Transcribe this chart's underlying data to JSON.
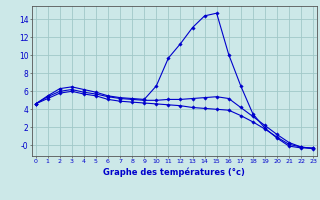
{
  "xlabel": "Graphe des températures (°c)",
  "background_color": "#cce8e8",
  "grid_color": "#a0c8c8",
  "line_color": "#0000cc",
  "x_ticks": [
    0,
    1,
    2,
    3,
    4,
    5,
    6,
    7,
    8,
    9,
    10,
    11,
    12,
    13,
    14,
    15,
    16,
    17,
    18,
    19,
    20,
    21,
    22,
    23
  ],
  "ylim": [
    -1.2,
    15.5
  ],
  "xlim": [
    -0.3,
    23.3
  ],
  "yticks": [
    0,
    2,
    4,
    6,
    8,
    10,
    12,
    14
  ],
  "ytick_labels": [
    "-0",
    "2",
    "4",
    "6",
    "8",
    "10",
    "12",
    "14"
  ],
  "series1_x": [
    0,
    1,
    2,
    3,
    4,
    5,
    6,
    7,
    8,
    9,
    10,
    11,
    12,
    13,
    14,
    15,
    16,
    17,
    18,
    19,
    20,
    21,
    22,
    23
  ],
  "series1_y": [
    4.6,
    5.5,
    6.3,
    6.5,
    6.2,
    5.9,
    5.5,
    5.3,
    5.2,
    5.1,
    6.6,
    9.7,
    11.3,
    13.1,
    14.4,
    14.7,
    10.1,
    6.6,
    3.5,
    1.9,
    0.8,
    -0.1,
    -0.3,
    -0.3
  ],
  "series2_x": [
    0,
    1,
    2,
    3,
    4,
    5,
    6,
    7,
    8,
    9,
    10,
    11,
    12,
    13,
    14,
    15,
    16,
    17,
    18,
    19,
    20,
    21,
    22,
    23
  ],
  "series2_y": [
    4.6,
    5.4,
    6.0,
    6.2,
    5.9,
    5.7,
    5.4,
    5.2,
    5.1,
    5.0,
    5.0,
    5.1,
    5.1,
    5.2,
    5.3,
    5.4,
    5.2,
    4.2,
    3.2,
    2.2,
    1.2,
    0.3,
    -0.2,
    -0.4
  ],
  "series3_x": [
    0,
    1,
    2,
    3,
    4,
    5,
    6,
    7,
    8,
    9,
    10,
    11,
    12,
    13,
    14,
    15,
    16,
    17,
    18,
    19,
    20,
    21,
    22,
    23
  ],
  "series3_y": [
    4.6,
    5.2,
    5.8,
    6.0,
    5.7,
    5.5,
    5.1,
    4.9,
    4.8,
    4.7,
    4.6,
    4.5,
    4.4,
    4.2,
    4.1,
    4.0,
    3.9,
    3.3,
    2.6,
    1.8,
    0.9,
    0.1,
    -0.2,
    -0.35
  ],
  "marker_size": 1.8,
  "line_width": 0.8,
  "xlabel_fontsize": 6,
  "xtick_fontsize": 4.5,
  "ytick_fontsize": 5.5
}
